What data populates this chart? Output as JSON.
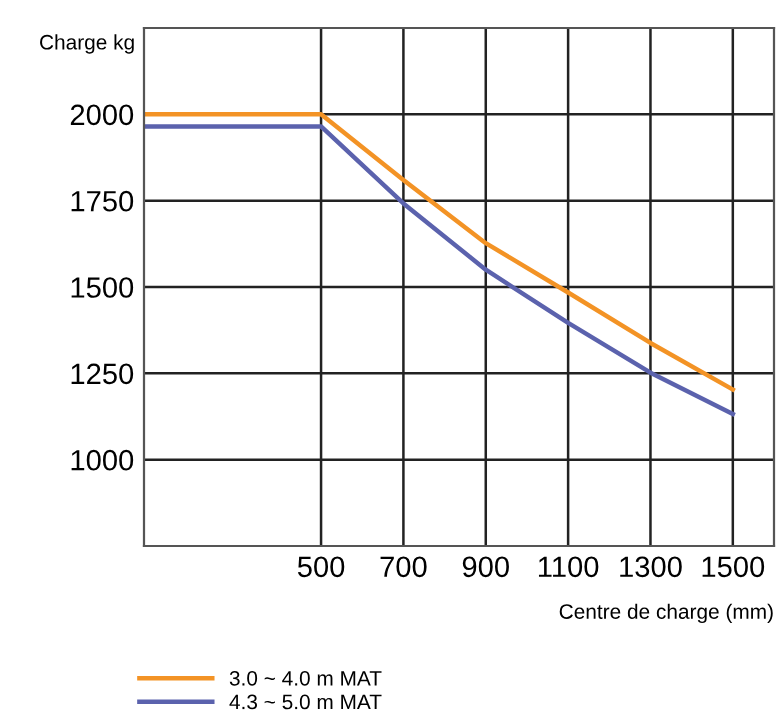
{
  "chart_data": {
    "type": "line",
    "xlabel": "Centre de charge (mm)",
    "ylabel": "Charge kg",
    "xlim": [
      70,
      1600
    ],
    "ylim": [
      750,
      2250
    ],
    "xticks": [
      500,
      700,
      900,
      1100,
      1300,
      1500
    ],
    "yticks": [
      1000,
      1250,
      1500,
      1750,
      2000
    ],
    "grid": true,
    "legend": "bottom left",
    "marker": "none",
    "line_style": "solid",
    "series": [
      {
        "name": "3.0 ~ 4.0 m MAT",
        "color": "#f39325",
        "x": [
          70,
          500,
          700,
          900,
          1100,
          1300,
          1500
        ],
        "values": [
          2000,
          2000,
          1810,
          1627,
          1484,
          1338,
          1203
        ]
      },
      {
        "name": "4.3 ~ 5.0 m MAT",
        "color": "#5b62ad",
        "x": [
          70,
          500,
          700,
          900,
          1100,
          1300,
          1500
        ],
        "values": [
          1965,
          1965,
          1742,
          1550,
          1396,
          1252,
          1132
        ]
      }
    ]
  }
}
